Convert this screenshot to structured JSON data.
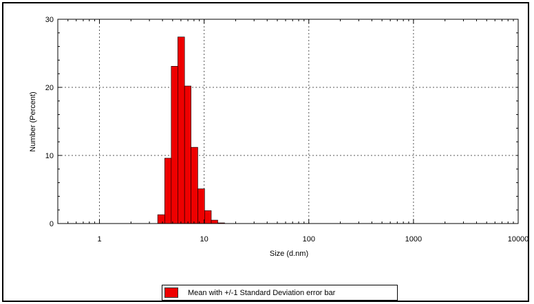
{
  "chart_data": {
    "type": "bar",
    "title": "",
    "xlabel": "Size (d.nm)",
    "ylabel": "Number (Percent)",
    "xscale": "log",
    "xlim": [
      0.4,
      10000
    ],
    "ylim": [
      0,
      30
    ],
    "grid": true,
    "legend_position": "bottom",
    "x_ticks": [
      "1",
      "10",
      "100",
      "1000",
      "10000"
    ],
    "y_ticks": [
      "0",
      "10",
      "20",
      "30"
    ],
    "bar_color": "#ee0000",
    "series": [
      {
        "name": "Mean with +/-1 Standard Deviation error bar",
        "bins": [
          {
            "low": 3.6,
            "high": 4.2,
            "value": 1.3
          },
          {
            "low": 4.2,
            "high": 4.85,
            "value": 9.6
          },
          {
            "low": 4.85,
            "high": 5.6,
            "value": 23.1
          },
          {
            "low": 5.6,
            "high": 6.5,
            "value": 27.4
          },
          {
            "low": 6.5,
            "high": 7.5,
            "value": 20.2
          },
          {
            "low": 7.5,
            "high": 8.7,
            "value": 11.2
          },
          {
            "low": 8.7,
            "high": 10.1,
            "value": 5.1
          },
          {
            "low": 10.1,
            "high": 11.7,
            "value": 1.9
          },
          {
            "low": 11.7,
            "high": 13.5,
            "value": 0.5
          },
          {
            "low": 13.5,
            "high": 15.7,
            "value": 0.1
          }
        ]
      }
    ]
  }
}
